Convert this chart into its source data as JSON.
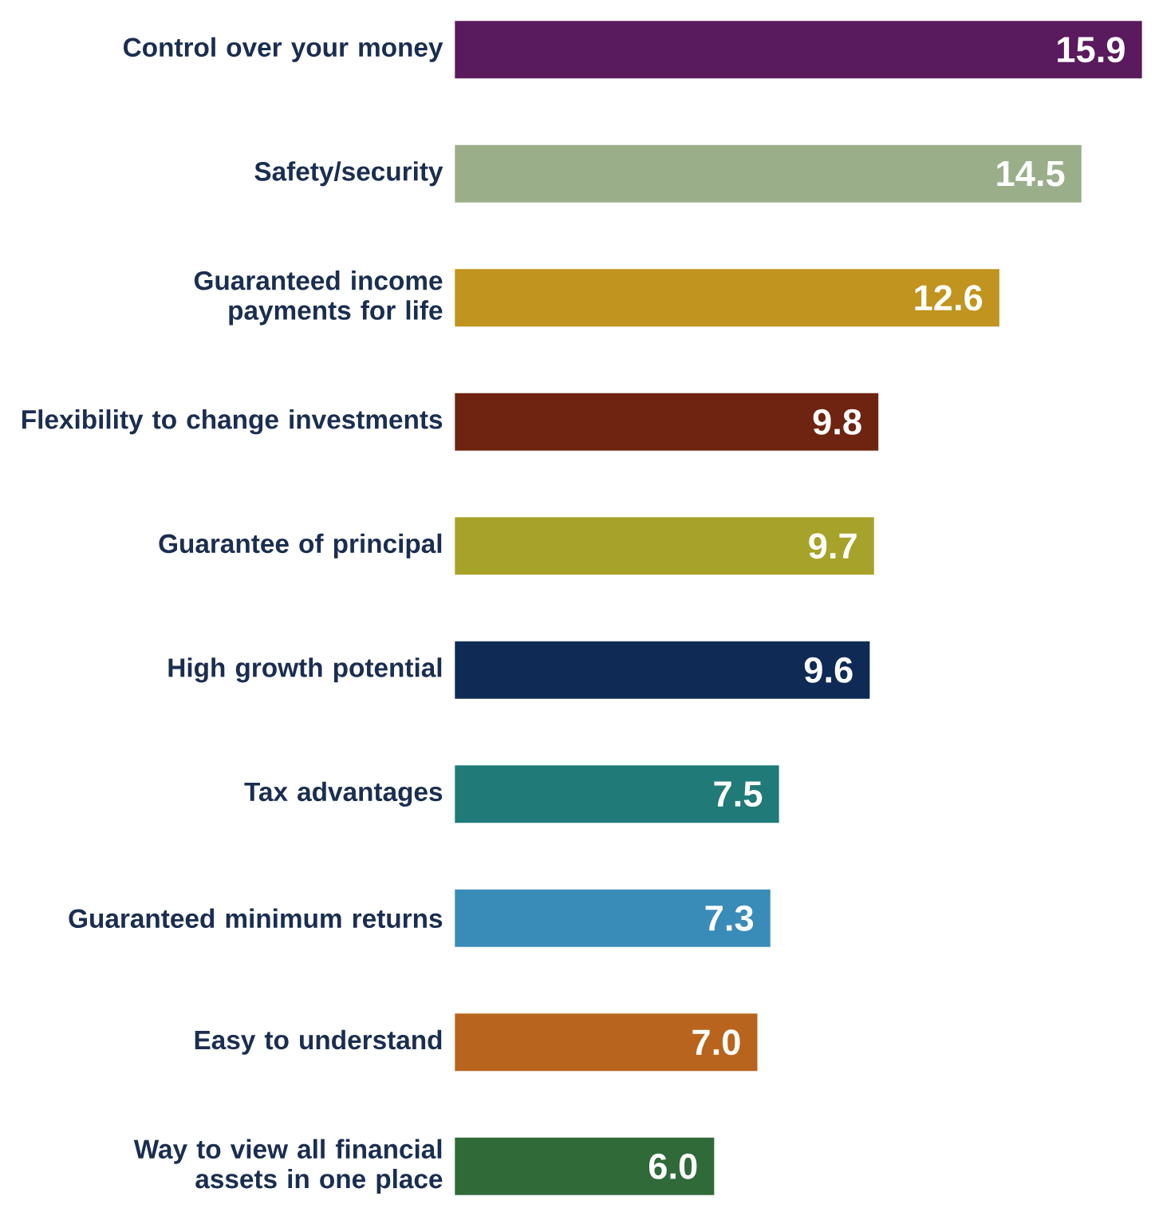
{
  "chart_data": {
    "type": "bar",
    "orientation": "horizontal",
    "categories": [
      "Control over your money",
      "Safety/security",
      "Guaranteed income payments for life",
      "Flexibility to change investments",
      "Guarantee of principal",
      "High growth potential",
      "Tax advantages",
      "Guaranteed minimum returns",
      "Easy to understand",
      "Way to view all financial assets in one place"
    ],
    "values": [
      15.9,
      14.5,
      12.6,
      9.8,
      9.7,
      9.6,
      7.5,
      7.3,
      7.0,
      6.0
    ],
    "value_labels": [
      "15.9",
      "14.5",
      "12.6",
      "9.8",
      "9.7",
      "9.6",
      "7.5",
      "7.3",
      "7.0",
      "6.0"
    ],
    "colors": [
      "#5a1a5e",
      "#9aae8a",
      "#c0941e",
      "#6e2410",
      "#a7a229",
      "#0f2a55",
      "#1f7a78",
      "#3a8cb8",
      "#b8641c",
      "#2f6a38"
    ]
  }
}
